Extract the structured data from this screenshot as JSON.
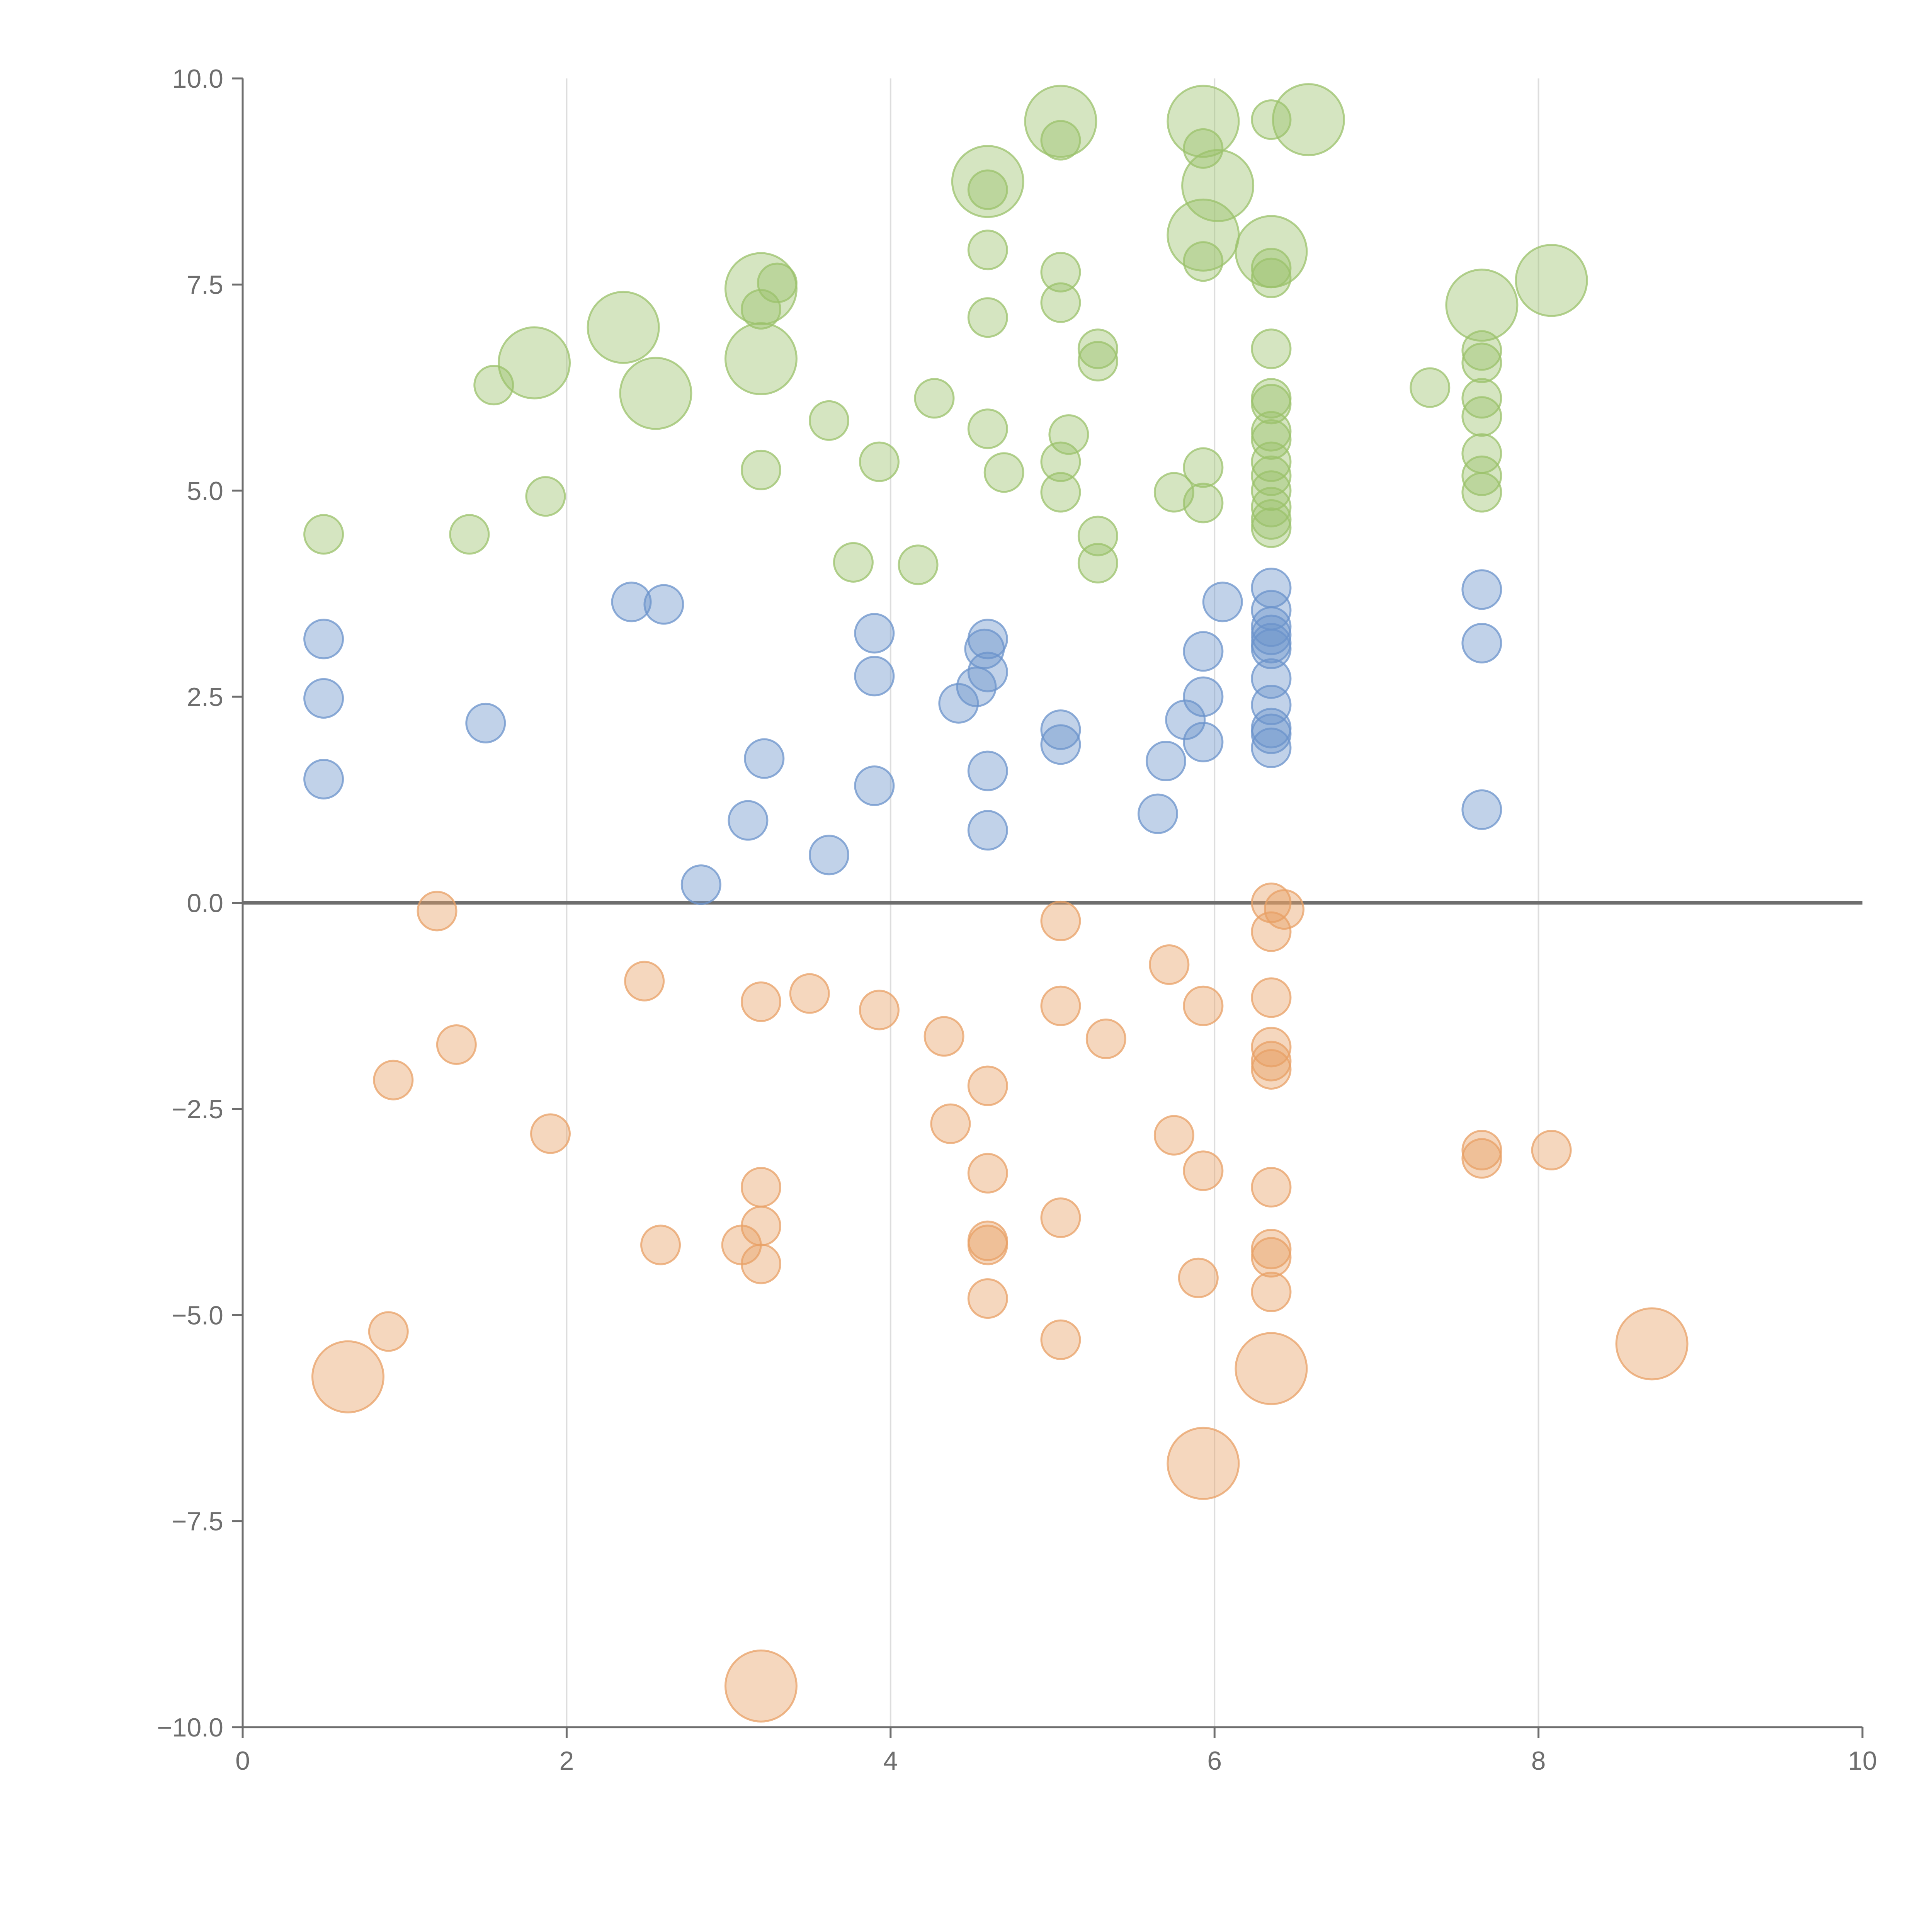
{
  "chart_data": {
    "type": "scatter",
    "title": "",
    "xlabel": "",
    "ylabel": "",
    "xlim": [
      0,
      10
    ],
    "ylim": [
      -10,
      10
    ],
    "x_ticks": [
      "0",
      "2",
      "4",
      "6",
      "8",
      "10"
    ],
    "y_ticks": [
      "10.0",
      "7.5",
      "5.0",
      "2.5",
      "0.0",
      "−2.5",
      "−5.0",
      "−7.5",
      "−10.0"
    ],
    "x_tick_values": [
      0,
      2,
      4,
      6,
      8,
      10
    ],
    "y_tick_values": [
      10,
      7.5,
      5,
      2.5,
      0,
      -2.5,
      -5,
      -7.5,
      -10
    ],
    "grid": "vertical",
    "reference_line_y": 0,
    "colors": {
      "green": "#9bc26b",
      "blue": "#6b93cb",
      "orange": "#e8a065",
      "axis": "#6e6e6e",
      "grid": "#dddddd"
    },
    "series": [
      {
        "name": "green",
        "color": "#9bc26b",
        "points": [
          [
            0.5,
            4.47,
            1
          ],
          [
            1.4,
            4.47,
            1
          ],
          [
            1.55,
            6.28,
            1
          ],
          [
            1.8,
            6.55,
            2
          ],
          [
            1.87,
            4.93,
            1
          ],
          [
            2.35,
            6.98,
            2
          ],
          [
            2.55,
            6.18,
            2
          ],
          [
            3.2,
            7.45,
            2
          ],
          [
            3.2,
            7.2,
            1
          ],
          [
            3.2,
            6.6,
            2
          ],
          [
            3.2,
            5.25,
            1
          ],
          [
            3.3,
            7.52,
            1
          ],
          [
            3.62,
            5.85,
            1
          ],
          [
            3.77,
            4.13,
            1
          ],
          [
            3.93,
            5.35,
            1
          ],
          [
            4.17,
            4.1,
            1
          ],
          [
            4.27,
            6.12,
            1
          ],
          [
            4.6,
            8.75,
            2
          ],
          [
            4.6,
            8.65,
            1
          ],
          [
            4.6,
            7.92,
            1
          ],
          [
            4.6,
            7.1,
            1
          ],
          [
            4.6,
            5.75,
            1
          ],
          [
            4.7,
            5.22,
            1
          ],
          [
            5.05,
            9.48,
            2
          ],
          [
            5.05,
            9.25,
            1
          ],
          [
            5.05,
            7.65,
            1
          ],
          [
            5.05,
            7.28,
            1
          ],
          [
            5.05,
            5.35,
            1
          ],
          [
            5.05,
            4.98,
            1
          ],
          [
            5.1,
            5.68,
            1
          ],
          [
            5.28,
            6.72,
            1
          ],
          [
            5.28,
            6.57,
            1
          ],
          [
            5.28,
            4.45,
            1
          ],
          [
            5.28,
            4.12,
            1
          ],
          [
            5.75,
            4.98,
            1
          ],
          [
            5.93,
            9.48,
            2
          ],
          [
            5.93,
            9.15,
            1
          ],
          [
            5.93,
            8.1,
            2
          ],
          [
            5.93,
            7.78,
            1
          ],
          [
            5.93,
            5.28,
            1
          ],
          [
            5.93,
            4.85,
            1
          ],
          [
            6.02,
            8.7,
            2
          ],
          [
            6.35,
            9.5,
            1
          ],
          [
            6.35,
            7.9,
            2
          ],
          [
            6.35,
            7.7,
            1
          ],
          [
            6.35,
            7.58,
            1
          ],
          [
            6.35,
            6.72,
            1
          ],
          [
            6.35,
            6.12,
            1
          ],
          [
            6.35,
            6.05,
            1
          ],
          [
            6.35,
            5.72,
            1
          ],
          [
            6.35,
            5.62,
            1
          ],
          [
            6.35,
            5.35,
            1
          ],
          [
            6.35,
            5.18,
            1
          ],
          [
            6.35,
            5.0,
            1
          ],
          [
            6.35,
            4.8,
            1
          ],
          [
            6.35,
            4.65,
            1
          ],
          [
            6.35,
            4.55,
            1
          ],
          [
            6.58,
            9.5,
            2
          ],
          [
            7.33,
            6.25,
            1
          ],
          [
            7.65,
            7.25,
            2
          ],
          [
            7.65,
            6.7,
            1
          ],
          [
            7.65,
            6.55,
            1
          ],
          [
            7.65,
            6.12,
            1
          ],
          [
            7.65,
            5.9,
            1
          ],
          [
            7.65,
            5.45,
            1
          ],
          [
            7.65,
            5.18,
            1
          ],
          [
            7.65,
            4.98,
            1
          ],
          [
            8.08,
            7.55,
            2
          ]
        ]
      },
      {
        "name": "blue",
        "color": "#6b93cb",
        "points": [
          [
            0.5,
            3.2,
            1
          ],
          [
            0.5,
            2.48,
            1
          ],
          [
            0.5,
            1.5,
            1
          ],
          [
            1.5,
            2.18,
            1
          ],
          [
            2.4,
            3.65,
            1
          ],
          [
            2.6,
            3.62,
            1
          ],
          [
            2.83,
            0.22,
            1
          ],
          [
            3.12,
            1.0,
            1
          ],
          [
            3.22,
            1.75,
            1
          ],
          [
            3.62,
            0.58,
            1
          ],
          [
            3.9,
            3.27,
            1
          ],
          [
            3.9,
            2.75,
            1
          ],
          [
            3.9,
            1.42,
            1
          ],
          [
            4.42,
            2.42,
            1
          ],
          [
            4.53,
            2.62,
            1
          ],
          [
            4.6,
            3.2,
            1
          ],
          [
            4.58,
            3.08,
            1
          ],
          [
            4.6,
            2.8,
            1
          ],
          [
            4.6,
            1.6,
            1
          ],
          [
            4.6,
            0.88,
            1
          ],
          [
            5.05,
            2.1,
            1
          ],
          [
            5.05,
            1.92,
            1
          ],
          [
            5.65,
            1.08,
            1
          ],
          [
            5.7,
            1.72,
            1
          ],
          [
            5.82,
            2.22,
            1
          ],
          [
            5.93,
            3.05,
            1
          ],
          [
            5.93,
            2.5,
            1
          ],
          [
            5.93,
            1.95,
            1
          ],
          [
            6.05,
            3.65,
            1
          ],
          [
            6.35,
            3.82,
            1
          ],
          [
            6.35,
            3.55,
            1
          ],
          [
            6.35,
            3.35,
            1
          ],
          [
            6.35,
            3.25,
            1
          ],
          [
            6.35,
            3.15,
            1
          ],
          [
            6.35,
            3.08,
            1
          ],
          [
            6.35,
            2.72,
            1
          ],
          [
            6.35,
            2.4,
            1
          ],
          [
            6.35,
            2.12,
            1
          ],
          [
            6.35,
            2.05,
            1
          ],
          [
            6.35,
            1.88,
            1
          ],
          [
            7.65,
            3.8,
            1
          ],
          [
            7.65,
            3.15,
            1
          ],
          [
            7.65,
            1.13,
            1
          ]
        ]
      },
      {
        "name": "orange",
        "color": "#e8a065",
        "points": [
          [
            0.65,
            -5.75,
            2
          ],
          [
            0.9,
            -5.2,
            1
          ],
          [
            0.93,
            -2.15,
            1
          ],
          [
            1.2,
            -0.1,
            1
          ],
          [
            1.32,
            -1.72,
            1
          ],
          [
            1.9,
            -2.8,
            1
          ],
          [
            2.48,
            -0.95,
            1
          ],
          [
            2.58,
            -4.15,
            1
          ],
          [
            3.08,
            -4.15,
            1
          ],
          [
            3.2,
            -1.2,
            1
          ],
          [
            3.2,
            -3.45,
            1
          ],
          [
            3.2,
            -3.92,
            1
          ],
          [
            3.2,
            -4.38,
            1
          ],
          [
            3.2,
            -9.5,
            2
          ],
          [
            3.5,
            -1.1,
            1
          ],
          [
            3.93,
            -1.3,
            1
          ],
          [
            4.33,
            -1.62,
            1
          ],
          [
            4.37,
            -2.68,
            1
          ],
          [
            4.6,
            -2.22,
            1
          ],
          [
            4.6,
            -3.28,
            1
          ],
          [
            4.6,
            -4.1,
            1
          ],
          [
            4.6,
            -4.15,
            1
          ],
          [
            4.6,
            -4.8,
            1
          ],
          [
            5.05,
            -0.22,
            1
          ],
          [
            5.05,
            -1.25,
            1
          ],
          [
            5.05,
            -3.82,
            1
          ],
          [
            5.05,
            -5.3,
            1
          ],
          [
            5.33,
            -1.65,
            1
          ],
          [
            5.72,
            -0.75,
            1
          ],
          [
            5.75,
            -2.82,
            1
          ],
          [
            5.9,
            -4.55,
            1
          ],
          [
            5.93,
            -1.25,
            1
          ],
          [
            5.93,
            -3.25,
            1
          ],
          [
            5.93,
            -6.8,
            2
          ],
          [
            6.35,
            0.0,
            1
          ],
          [
            6.35,
            -0.35,
            1
          ],
          [
            6.43,
            -0.08,
            1
          ],
          [
            6.35,
            -1.15,
            1
          ],
          [
            6.35,
            -1.75,
            1
          ],
          [
            6.35,
            -1.92,
            1
          ],
          [
            6.35,
            -2.02,
            1
          ],
          [
            6.35,
            -3.45,
            1
          ],
          [
            6.35,
            -4.2,
            1
          ],
          [
            6.35,
            -4.3,
            1
          ],
          [
            6.35,
            -4.72,
            1
          ],
          [
            6.35,
            -5.65,
            2
          ],
          [
            7.65,
            -3.0,
            1
          ],
          [
            7.65,
            -3.1,
            1
          ],
          [
            8.08,
            -3.0,
            1
          ],
          [
            8.7,
            -5.35,
            2
          ]
        ]
      }
    ]
  }
}
